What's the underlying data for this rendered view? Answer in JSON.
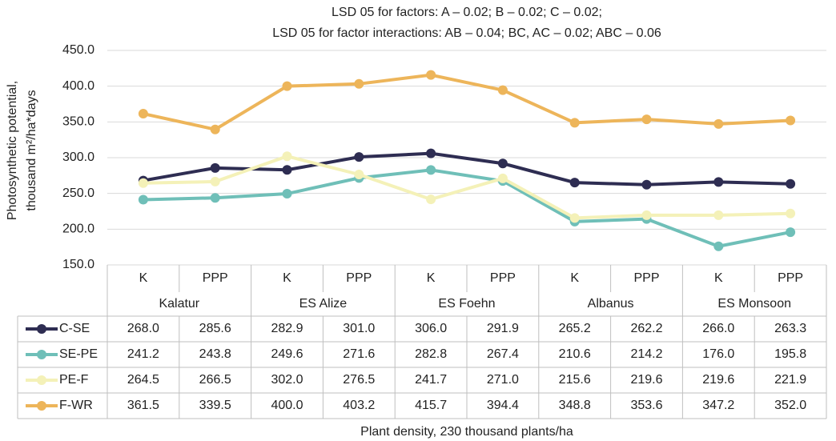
{
  "chart_data": {
    "type": "line",
    "title": "LSD 05 for factors: A – 0.02; B – 0.02; C – 0.02;",
    "subtitle": "LSD 05 for factor interactions: AB – 0.04; BC, AC – 0.02; ABC – 0.06",
    "ylabel": [
      "Photosynthetic potential,",
      "thousand m²/ha*days"
    ],
    "xlabel": "Plant density, 230 thousand plants/ha",
    "categories": [
      "K",
      "PPP",
      "K",
      "PPP",
      "K",
      "PPP",
      "K",
      "PPP",
      "K",
      "PPP"
    ],
    "groups": [
      "Kalatur",
      "ES Alize",
      "ES Foehn",
      "Albanus",
      "ES Monsoon"
    ],
    "ylim": [
      150,
      450
    ],
    "yticks": [
      {
        "value": 150,
        "label": "150.0"
      },
      {
        "value": 200,
        "label": "200.0"
      },
      {
        "value": 250,
        "label": "250.0"
      },
      {
        "value": 300,
        "label": "300.0"
      },
      {
        "value": 350,
        "label": "350.0"
      },
      {
        "value": 400,
        "label": "400.0"
      },
      {
        "value": 450,
        "label": "450.0"
      }
    ],
    "grid": true,
    "series": [
      {
        "name": "C-SE",
        "color": "#2e2d52",
        "values": [
          268.0,
          285.6,
          282.9,
          301.0,
          306.0,
          291.9,
          265.2,
          262.2,
          266.0,
          263.3
        ],
        "value_labels": [
          "268.0",
          "285.6",
          "282.9",
          "301.0",
          "306.0",
          "291.9",
          "265.2",
          "262.2",
          "266.0",
          "263.3"
        ]
      },
      {
        "name": "SE-PE",
        "color": "#6fbfb8",
        "values": [
          241.2,
          243.8,
          249.6,
          271.6,
          282.8,
          267.4,
          210.6,
          214.2,
          176.0,
          195.8
        ],
        "value_labels": [
          "241.2",
          "243.8",
          "249.6",
          "271.6",
          "282.8",
          "267.4",
          "210.6",
          "214.2",
          "176.0",
          "195.8"
        ]
      },
      {
        "name": "PE-F",
        "color": "#f4f1b8",
        "values": [
          264.5,
          266.5,
          302.0,
          276.5,
          241.7,
          271.0,
          215.6,
          219.6,
          219.6,
          221.9
        ],
        "value_labels": [
          "264.5",
          "266.5",
          "302.0",
          "276.5",
          "241.7",
          "271.0",
          "215.6",
          "219.6",
          "219.6",
          "221.9"
        ]
      },
      {
        "name": "F-WR",
        "color": "#edb55a",
        "values": [
          361.5,
          339.5,
          400.0,
          403.2,
          415.7,
          394.4,
          348.8,
          353.6,
          347.2,
          352.0
        ],
        "value_labels": [
          "361.5",
          "339.5",
          "400.0",
          "403.2",
          "415.7",
          "394.4",
          "348.8",
          "353.6",
          "347.2",
          "352.0"
        ]
      }
    ]
  }
}
